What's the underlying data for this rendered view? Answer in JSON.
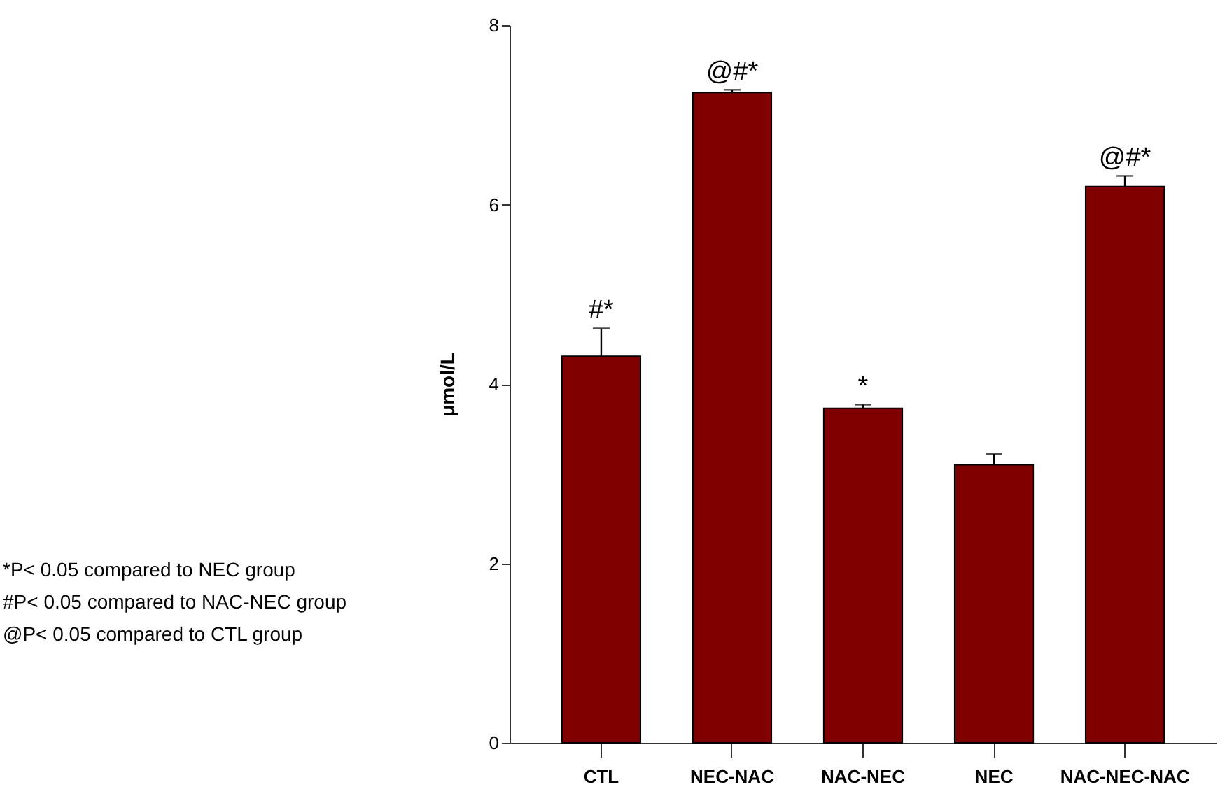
{
  "chart_data": {
    "type": "bar",
    "ylabel": "μmol/L",
    "categories": [
      "CTL",
      "NEC-NAC",
      "NAC-NEC",
      "NEC",
      "NAC-NEC-NAC"
    ],
    "values": [
      4.31,
      7.25,
      3.73,
      3.1,
      6.2
    ],
    "errors": [
      [
        4.31,
        4.62
      ],
      [
        7.25,
        7.28
      ],
      [
        3.73,
        3.77
      ],
      [
        3.1,
        3.22
      ],
      [
        6.2,
        6.32
      ]
    ],
    "color": "#800000",
    "ylim": [
      0,
      8
    ],
    "yticks": [
      0,
      2,
      4,
      6,
      8
    ],
    "grid": false,
    "annotations": [
      {
        "text": "#*",
        "x": "CTL",
        "y": 4.62
      },
      {
        "text": "@#*",
        "x": "NEC-NAC",
        "y": 7.28
      },
      {
        "text": "*",
        "x": "NAC-NEC",
        "y": 3.77
      },
      {
        "text": "@#*",
        "x": "NAC-NEC-NAC",
        "y": 6.32
      },
      "*P< 0.05 compared to NEC group",
      "#P< 0.05 compared to NAC-NEC group",
      "@P< 0.05 compared to CTL  group"
    ]
  }
}
